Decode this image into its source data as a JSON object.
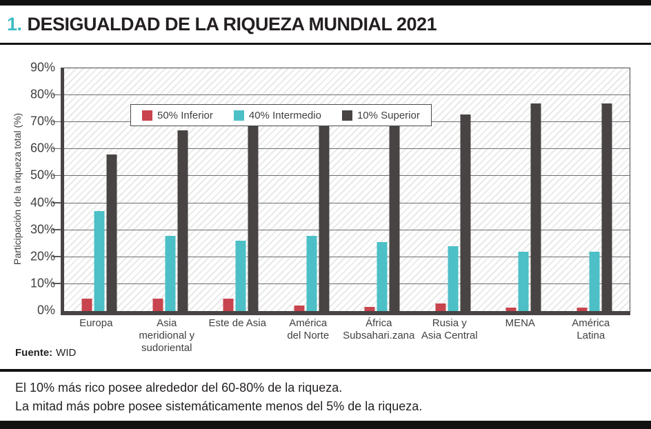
{
  "header": {
    "number": "1.",
    "title": "DESIGUALDAD DE LA RIQUEZA MUNDIAL 2021"
  },
  "colors": {
    "accent_teal": "#3fbdc4",
    "bar_red": "#c8444e",
    "bar_teal": "#4cc0c6",
    "bar_dark": "#474443",
    "rule_black": "#111111"
  },
  "chart_data": {
    "type": "bar",
    "title": "DESIGUALDAD DE LA RIQUEZA MUNDIAL 2021",
    "xlabel": "",
    "ylabel": "Participación de la riqueza total (%)",
    "ylim": [
      0,
      90
    ],
    "ytick_step": 10,
    "ytick_labels": [
      "0%",
      "10%",
      "20%",
      "30%",
      "40%",
      "50%",
      "60%",
      "70%",
      "80%",
      "90%"
    ],
    "grid": true,
    "legend_position": "top-left-inside",
    "categories": [
      "Europa",
      "Asia\nmeridional y\nsudoriental",
      "Este de Asia",
      "América\ndel Norte",
      "África\nSubsahari.zana",
      "Rusia y\nAsia Central",
      "MENA",
      "América\nLatina"
    ],
    "series": [
      {
        "name": "50% Inferior",
        "color": "#c8444e",
        "values": [
          4.5,
          4.5,
          4.6,
          2,
          1.6,
          2.9,
          1.2,
          1.3
        ]
      },
      {
        "name": "40% Intermedio",
        "color": "#4cc0c6",
        "values": [
          37,
          28,
          26,
          28,
          25.5,
          24,
          22,
          22
        ]
      },
      {
        "name": "10% Superior",
        "color": "#474443",
        "values": [
          58,
          67,
          69,
          70,
          73,
          73,
          77,
          77
        ]
      }
    ]
  },
  "source": {
    "label": "Fuente:",
    "value": "WID"
  },
  "notes": [
    "El 10% más rico posee alrededor del 60-80% de la riqueza.",
    "La mitad más pobre posee sistemáticamente menos del 5% de la riqueza."
  ]
}
